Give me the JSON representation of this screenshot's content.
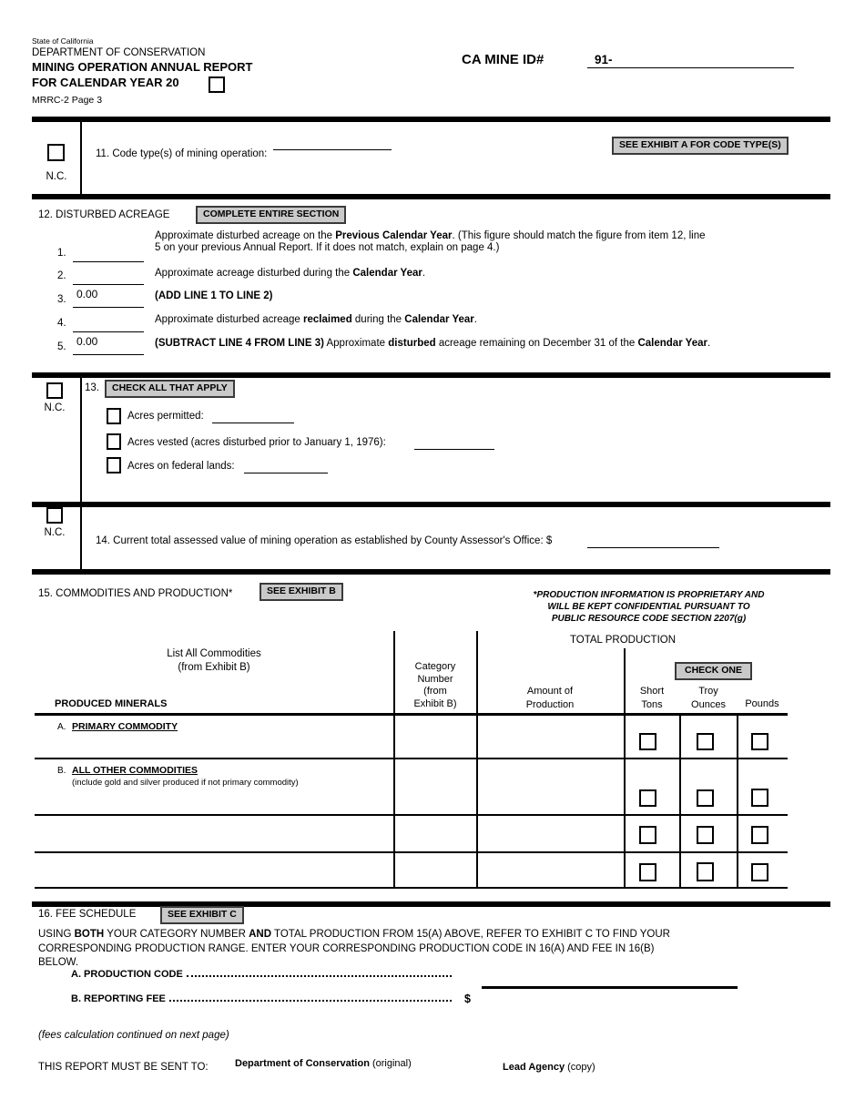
{
  "header": {
    "state": "State of California",
    "department": "DEPARTMENT OF CONSERVATION",
    "title_line1": "MINING OPERATION ANNUAL REPORT",
    "title_line2": "FOR CALENDAR YEAR 20",
    "form_number": "MRRC-2 Page 3",
    "mine_id_label": "CA MINE ID#",
    "mine_id_value": "91-"
  },
  "section11": {
    "nc_label": "N.C.",
    "label": "11. Code type(s) of mining operation:",
    "button": "SEE EXHIBIT A FOR CODE TYPE(S)"
  },
  "section12": {
    "title": "12. DISTURBED ACREAGE",
    "button": "COMPLETE ENTIRE SECTION",
    "rows": [
      {
        "num": "1.",
        "value": "",
        "segments": [
          {
            "t": "Approximate disturbed acreage on the "
          },
          {
            "t": "Previous Calendar Year",
            "b": true
          },
          {
            "t": ".  (This figure should match the figure from item 12, line"
          },
          {
            "br": true
          },
          {
            "t": "5 on your previous Annual Report.  If it does not match, explain on page 4.)"
          }
        ]
      },
      {
        "num": "2.",
        "value": "",
        "segments": [
          {
            "t": "Approximate acreage disturbed during the "
          },
          {
            "t": "Calendar Year",
            "b": true
          },
          {
            "t": "."
          }
        ]
      },
      {
        "num": "3.",
        "value": "0.00",
        "segments": [
          {
            "t": "(ADD LINE 1 TO LINE 2)",
            "b": true
          }
        ]
      },
      {
        "num": "4.",
        "value": "",
        "segments": [
          {
            "t": "Approximate disturbed acreage "
          },
          {
            "t": "reclaimed",
            "b": true
          },
          {
            "t": " during the "
          },
          {
            "t": "Calendar Year",
            "b": true
          },
          {
            "t": "."
          }
        ]
      },
      {
        "num": "5.",
        "value": "0.00",
        "segments": [
          {
            "t": "(SUBTRACT LINE 4 FROM LINE 3)",
            "b": true
          },
          {
            "t": " Approximate "
          },
          {
            "t": "disturbed",
            "b": true
          },
          {
            "t": " acreage remaining on December 31 of the "
          },
          {
            "t": "Calendar Year",
            "b": true
          },
          {
            "t": "."
          }
        ]
      }
    ]
  },
  "section13": {
    "nc_label": "N.C.",
    "number": "13.",
    "button": "CHECK ALL THAT APPLY",
    "items": [
      {
        "label": "Acres permitted:"
      },
      {
        "label": "Acres vested (acres disturbed prior to January 1, 1976):"
      },
      {
        "label": "Acres on federal lands:"
      }
    ]
  },
  "section14": {
    "nc_label": "N.C.",
    "label": "14. Current total assessed value of mining operation as established by County Assessor's Office: $"
  },
  "section15": {
    "title": "15. COMMODITIES AND PRODUCTION*",
    "button": "SEE EXHIBIT B",
    "note": [
      "*PRODUCTION INFORMATION IS PROPRIETARY AND",
      "WILL BE KEPT CONFIDENTIAL PURSUANT TO",
      "PUBLIC RESOURCE CODE SECTION 2207(g)"
    ],
    "table": {
      "total_production": "TOTAL PRODUCTION",
      "commodities_l1": "List All Commodities",
      "commodities_l2": "(from Exhibit B)",
      "produced_minerals": "PRODUCED MINERALS",
      "category": [
        "Category",
        "Number",
        "(from",
        "Exhibit B)"
      ],
      "amount": [
        "Amount of",
        "Production"
      ],
      "check_one": "CHECK ONE",
      "short_tons": [
        "Short",
        "Tons"
      ],
      "troy_ounces": [
        "Troy",
        "Ounces"
      ],
      "pounds": "Pounds",
      "row_a_letter": "A.",
      "row_a_label": "PRIMARY COMMODITY",
      "row_b_letter": "B.",
      "row_b_label": "ALL OTHER COMMODITIES",
      "row_b_note": "(include gold and silver produced if not primary commodity)"
    }
  },
  "section16": {
    "title": "16. FEE SCHEDULE",
    "button": "SEE EXHIBIT C",
    "instructions": [
      {
        "t": "USING "
      },
      {
        "t": "BOTH",
        "b": true
      },
      {
        "t": " YOUR CATEGORY NUMBER "
      },
      {
        "t": "AND",
        "b": true
      },
      {
        "t": " TOTAL PRODUCTION FROM 15(A) ABOVE, REFER TO EXHIBIT C TO FIND YOUR"
      },
      {
        "br": true
      },
      {
        "t": "CORRESPONDING PRODUCTION RANGE.  ENTER YOUR CORRESPONDING PRODUCTION CODE IN 16(A) AND FEE IN 16(B)"
      },
      {
        "br": true
      },
      {
        "t": "BELOW."
      }
    ],
    "row_a_label": "A. PRODUCTION CODE",
    "row_b_label": "B. REPORTING FEE",
    "dollar": "$"
  },
  "footer": {
    "fees_note": "(fees calculation continued on next page)",
    "sent_to_label": "THIS REPORT MUST BE SENT TO:",
    "dest1": [
      {
        "t": "Department of Conservation",
        "b": true
      },
      {
        "t": " (original)"
      }
    ],
    "dest2": [
      {
        "t": "Lead Agency",
        "b": true
      },
      {
        "t": " (copy)"
      }
    ]
  }
}
